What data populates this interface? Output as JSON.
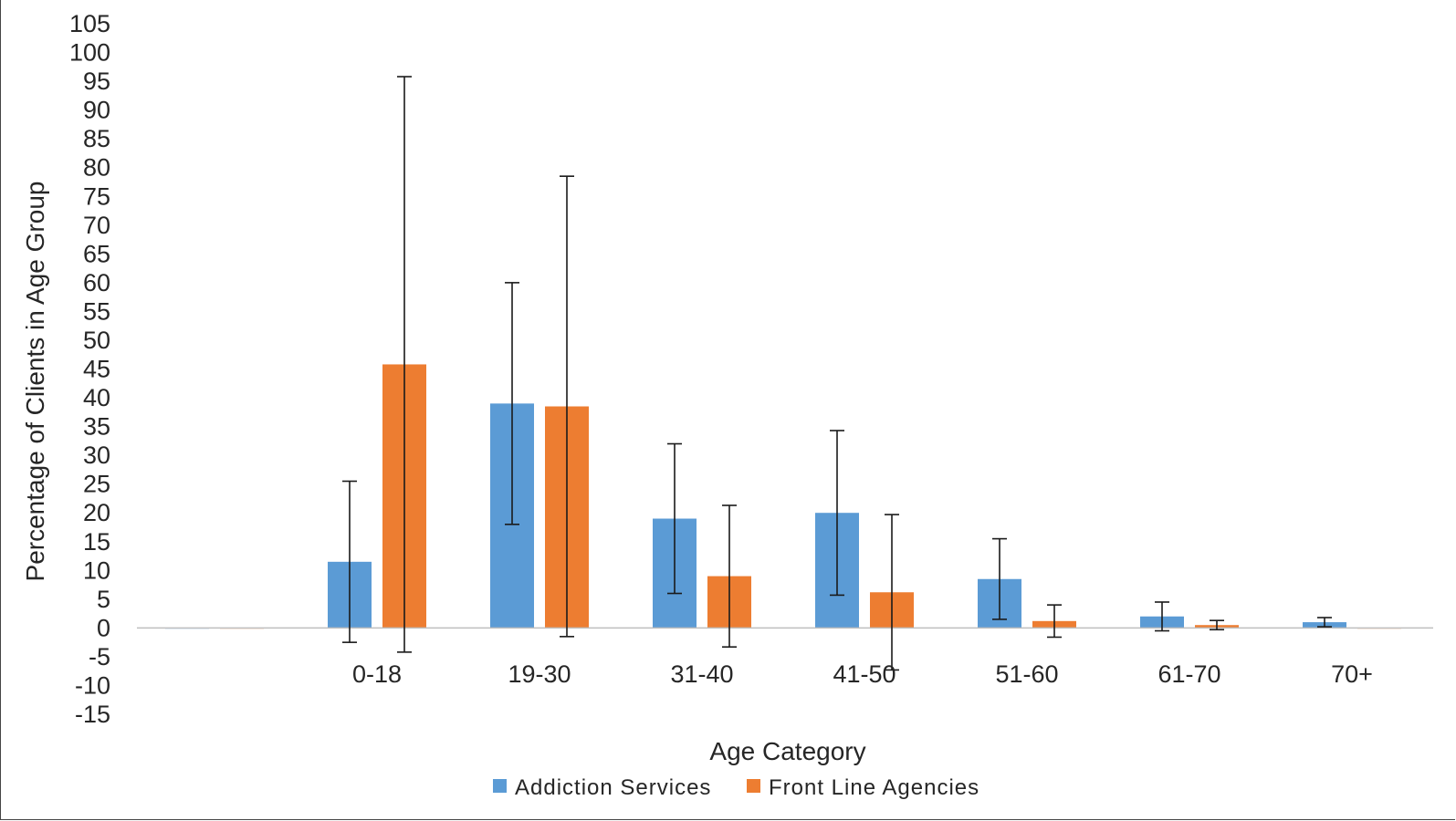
{
  "chart_data": {
    "type": "bar",
    "title": "",
    "xlabel": "Age Category",
    "ylabel": "Percentage of Clients in Age Group",
    "ylim": [
      -15,
      105
    ],
    "ytick_step": 5,
    "grid": false,
    "legend_position": "bottom",
    "categories": [
      "",
      "0-18",
      "19-30",
      "31-40",
      "41-50",
      "51-60",
      "61-70",
      "70+"
    ],
    "series": [
      {
        "name": "Addiction Services",
        "color": "#5B9BD5",
        "values": [
          0,
          11.5,
          39,
          19,
          20,
          8.5,
          2,
          1
        ],
        "error": [
          0,
          14,
          21,
          13,
          14.3,
          7,
          2.5,
          0.8
        ]
      },
      {
        "name": "Front Line Agencies",
        "color": "#ED7D31",
        "values": [
          0,
          45.8,
          38.5,
          9,
          6.2,
          1.2,
          0.5,
          0
        ],
        "error": [
          0,
          50,
          40,
          12.3,
          13.5,
          2.8,
          0.8,
          0
        ]
      }
    ]
  }
}
